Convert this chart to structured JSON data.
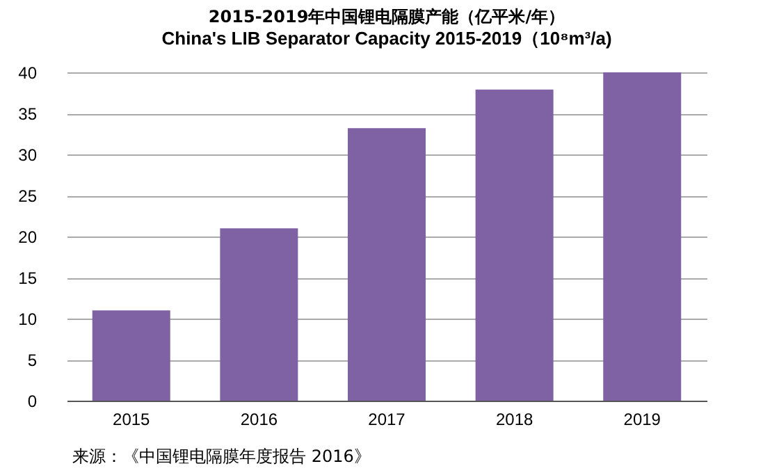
{
  "chart_data": {
    "type": "bar",
    "title": "2015-2019年中国锂电隔膜产能（亿平米/年）",
    "subtitle": "China's LIB Separator Capacity 2015-2019（10⁸m³/a)",
    "categories": [
      "2015",
      "2016",
      "2017",
      "2018",
      "2019"
    ],
    "values": [
      11.0,
      21.0,
      33.2,
      37.9,
      40
    ],
    "color": "#7f62a3",
    "ylim": [
      0,
      40
    ],
    "yticks": [
      0,
      5,
      10,
      15,
      20,
      25,
      30,
      35,
      40
    ],
    "grid": "y",
    "annotations": [
      "来源：《中国锂电隔膜年度报告 2016》"
    ]
  }
}
